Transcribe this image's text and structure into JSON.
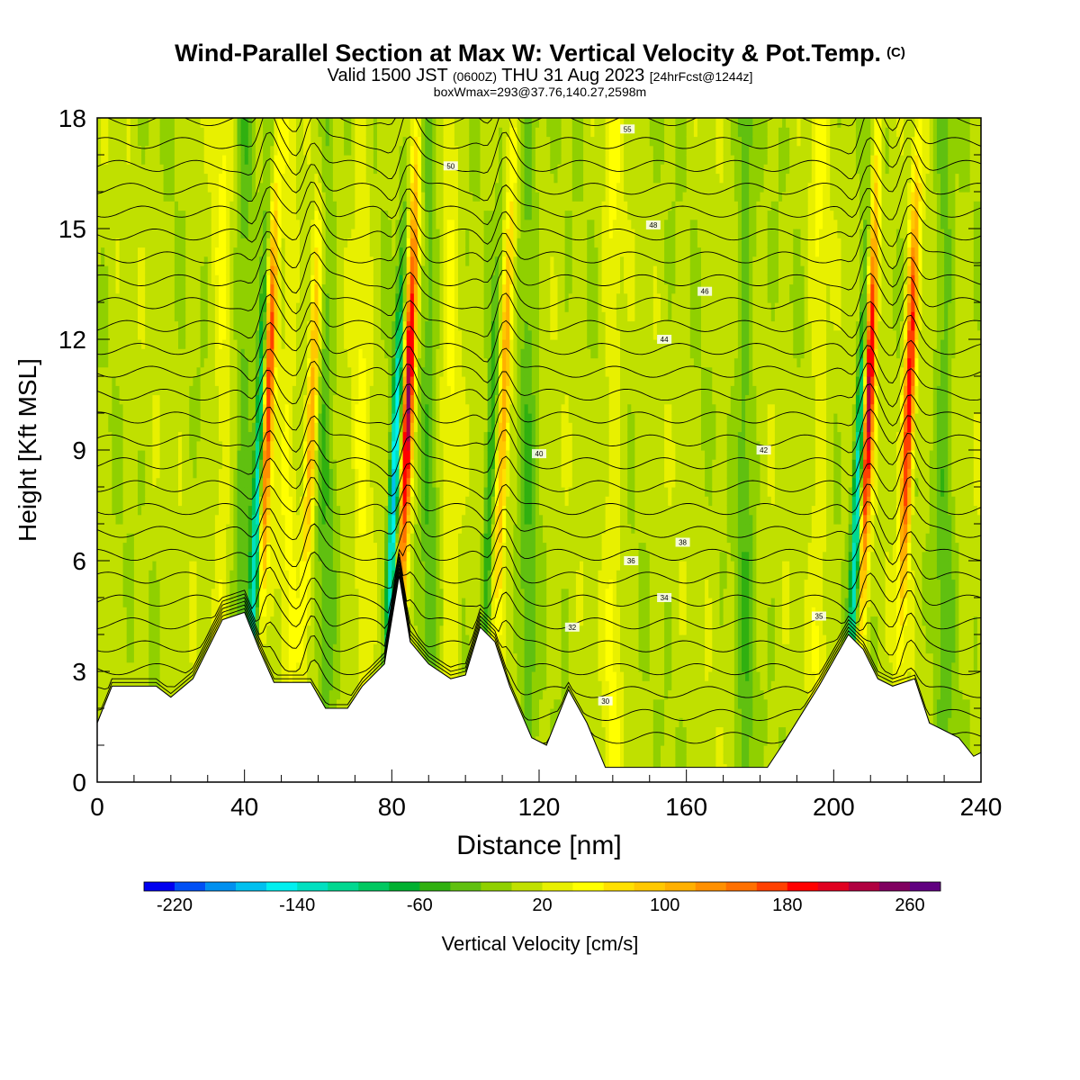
{
  "title": {
    "main": "Wind-Parallel Section at Max W: Vertical Velocity & Pot.Temp.",
    "copyright": "(C)",
    "valid_prefix": "Valid 1500 JST",
    "valid_utc": "(0600Z)",
    "valid_date": "THU 31 Aug 2023",
    "forecast": "[24hrFcst@1244z]",
    "boxwmax": "boxWmax=293@37.76,140.27,2598m"
  },
  "chart_data": {
    "type": "heatmap",
    "xlabel": "Distance [nm]",
    "ylabel": "Height [Kft MSL]",
    "xlim": [
      0,
      240
    ],
    "ylim": [
      0,
      18
    ],
    "xticks": [
      0,
      40,
      80,
      120,
      160,
      200,
      240
    ],
    "yticks": [
      0,
      3,
      6,
      9,
      12,
      15,
      18
    ],
    "colorbar": {
      "label": "Vertical Velocity [cm/s]",
      "tick_labels": [
        "-220",
        "-140",
        "-60",
        "20",
        "100",
        "180",
        "260"
      ],
      "tick_values": [
        -220,
        -140,
        -60,
        20,
        100,
        180,
        260
      ],
      "bins": [
        -240,
        -220,
        -200,
        -180,
        -160,
        -140,
        -120,
        -100,
        -80,
        -60,
        -40,
        -20,
        0,
        20,
        40,
        60,
        80,
        100,
        120,
        140,
        160,
        180,
        200,
        220,
        240,
        260,
        280
      ],
      "colors": [
        "#0000f0",
        "#0050f5",
        "#0090f0",
        "#00c0f0",
        "#00f0f0",
        "#00e0c0",
        "#00d890",
        "#00c860",
        "#00b030",
        "#30b010",
        "#60c010",
        "#90d000",
        "#c0e000",
        "#e8f000",
        "#ffff00",
        "#ffe000",
        "#ffc800",
        "#ffb000",
        "#ff9000",
        "#ff7000",
        "#ff4000",
        "#ff0000",
        "#e00020",
        "#b00040",
        "#800060",
        "#600080"
      ]
    },
    "updraft_bands": [
      {
        "x": 46,
        "peak": 180
      },
      {
        "x": 58,
        "peak": 110
      },
      {
        "x": 84,
        "peak": 240
      },
      {
        "x": 110,
        "peak": 120
      },
      {
        "x": 209,
        "peak": 230
      },
      {
        "x": 220,
        "peak": 200
      }
    ],
    "downdraft_bands": [
      {
        "x": 44,
        "min": -160
      },
      {
        "x": 81,
        "min": -180
      },
      {
        "x": 107,
        "min": -80
      },
      {
        "x": 207,
        "min": -170
      }
    ],
    "terrain_kft": [
      [
        0,
        1.6
      ],
      [
        4,
        2.6
      ],
      [
        16,
        2.6
      ],
      [
        20,
        2.3
      ],
      [
        26,
        2.8
      ],
      [
        34,
        4.4
      ],
      [
        40,
        4.6
      ],
      [
        44,
        3.6
      ],
      [
        48,
        2.7
      ],
      [
        58,
        2.7
      ],
      [
        62,
        2.0
      ],
      [
        68,
        2.0
      ],
      [
        72,
        2.6
      ],
      [
        78,
        3.2
      ],
      [
        82,
        5.6
      ],
      [
        85,
        3.8
      ],
      [
        90,
        3.2
      ],
      [
        96,
        2.8
      ],
      [
        100,
        2.9
      ],
      [
        104,
        4.2
      ],
      [
        108,
        3.8
      ],
      [
        112,
        2.6
      ],
      [
        118,
        1.2
      ],
      [
        122,
        1.0
      ],
      [
        128,
        2.5
      ],
      [
        133,
        1.6
      ],
      [
        138,
        0.4
      ],
      [
        182,
        0.4
      ],
      [
        186,
        1.0
      ],
      [
        196,
        2.6
      ],
      [
        204,
        4.0
      ],
      [
        208,
        3.6
      ],
      [
        212,
        2.8
      ],
      [
        216,
        2.6
      ],
      [
        222,
        2.8
      ],
      [
        226,
        1.6
      ],
      [
        234,
        1.2
      ],
      [
        238,
        0.7
      ],
      [
        240,
        0.8
      ]
    ],
    "theta_contours": [
      {
        "level": 30,
        "label_x": 138,
        "label_y": 2.2
      },
      {
        "level": 32,
        "label_x": 129,
        "label_y": 4.2
      },
      {
        "level": 34,
        "label_x": 154,
        "label_y": 5.0
      },
      {
        "level": 35,
        "label_x": 196,
        "label_y": 4.5
      },
      {
        "level": 36,
        "label_x": 145,
        "label_y": 6.0
      },
      {
        "level": 38,
        "label_x": 159,
        "label_y": 6.5
      },
      {
        "level": 40,
        "label_x": 120,
        "label_y": 8.9
      },
      {
        "level": 42,
        "label_x": 181,
        "label_y": 9.0
      },
      {
        "level": 44,
        "label_x": 154,
        "label_y": 12.0
      },
      {
        "level": 46,
        "label_x": 165,
        "label_y": 13.3
      },
      {
        "level": 48,
        "label_x": 151,
        "label_y": 15.1
      },
      {
        "level": 50,
        "label_x": 96,
        "label_y": 16.7
      },
      {
        "level": 55,
        "label_x": 144,
        "label_y": 17.7
      }
    ]
  }
}
